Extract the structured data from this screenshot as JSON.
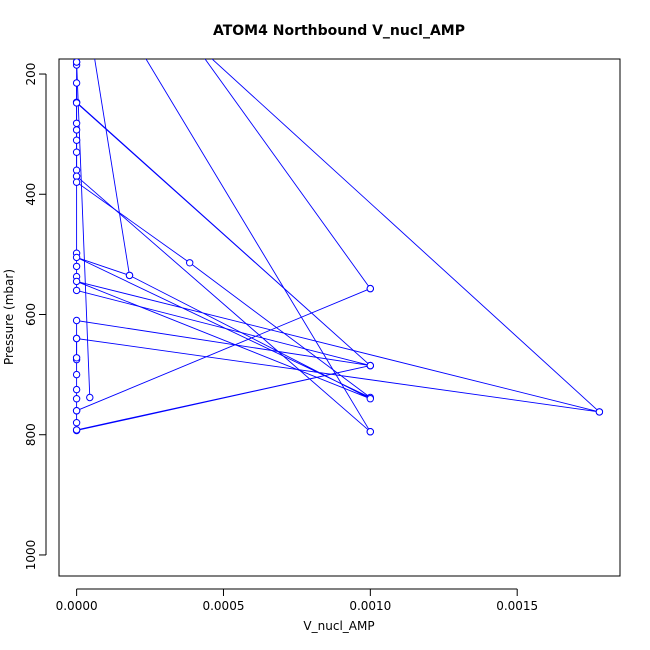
{
  "chart_data": {
    "type": "line",
    "title": "ATOM4 Northbound V_nucl_AMP",
    "xlabel": "V_nucl_AMP",
    "ylabel": "Pressure (mbar)",
    "xlim": [
      -6e-05,
      0.00185
    ],
    "ylim": [
      1035,
      175
    ],
    "y_reversed": true,
    "grid": false,
    "series_color": "#0000ff",
    "x_ticks": [
      {
        "value": 0.0,
        "label": "0.0000"
      },
      {
        "value": 0.0005,
        "label": "0.0005"
      },
      {
        "value": 0.001,
        "label": "0.0010"
      },
      {
        "value": 0.0015,
        "label": "0.0015"
      }
    ],
    "y_ticks": [
      {
        "value": 200,
        "label": "200"
      },
      {
        "value": 400,
        "label": "400"
      },
      {
        "value": 600,
        "label": "600"
      },
      {
        "value": 800,
        "label": "800"
      },
      {
        "value": 1000,
        "label": "1000"
      }
    ],
    "series": [
      {
        "points": [
          {
            "x": 0.0,
            "y": 185
          },
          {
            "x": 0.0,
            "y": 247
          },
          {
            "x": 0.001,
            "y": 685
          },
          {
            "x": 0.0,
            "y": 248
          },
          {
            "x": 0.0,
            "y": 293
          },
          {
            "x": 0.0,
            "y": 310
          },
          {
            "x": 0.0,
            "y": 330
          },
          {
            "x": 0.0,
            "y": 360
          },
          {
            "x": 0.0,
            "y": 370
          },
          {
            "x": 0.001,
            "y": 795
          },
          {
            "x": 0.0,
            "y": 370
          },
          {
            "x": 0.0,
            "y": 498
          },
          {
            "x": 0.0,
            "y": 520
          },
          {
            "x": 0.0,
            "y": 537
          },
          {
            "x": 0.0,
            "y": 560
          },
          {
            "x": 0.001,
            "y": 685
          },
          {
            "x": 0.0,
            "y": 610
          },
          {
            "x": 0.0,
            "y": 640
          },
          {
            "x": 0.0,
            "y": 675
          },
          {
            "x": 0.0,
            "y": 700
          },
          {
            "x": 0.0,
            "y": 725
          },
          {
            "x": 0.0,
            "y": 740
          },
          {
            "x": 0.0,
            "y": 760
          },
          {
            "x": 0.001,
            "y": 557
          },
          {
            "x": 0.0,
            "y": 760
          },
          {
            "x": 0.0,
            "y": 780
          },
          {
            "x": 0.0,
            "y": 793
          },
          {
            "x": 0.001,
            "y": 685
          },
          {
            "x": 0.0,
            "y": 792
          }
        ]
      },
      {
        "points": [
          {
            "x": 0.0,
            "y": 215
          },
          {
            "x": 0.0,
            "y": 282
          },
          {
            "x": 0.0,
            "y": 380
          },
          {
            "x": 0.000385,
            "y": 514
          },
          {
            "x": 0.001,
            "y": 738
          },
          {
            "x": 0.0,
            "y": 505
          },
          {
            "x": 0.00018,
            "y": 535
          },
          {
            "x": 0.001,
            "y": 740
          },
          {
            "x": 0.0,
            "y": 545
          },
          {
            "x": 0.00178,
            "y": 762
          },
          {
            "x": 0.0,
            "y": 640
          },
          {
            "x": 0.0,
            "y": 672
          }
        ]
      },
      {
        "points": [
          {
            "x": 0.0,
            "y": 180
          },
          {
            "x": 4.5e-05,
            "y": 738
          },
          {
            "x": 0.0,
            "y": 180
          }
        ]
      },
      {
        "points": [
          {
            "x": 6e-05,
            "y": 170
          },
          {
            "x": 0.00018,
            "y": 535
          }
        ]
      },
      {
        "points": [
          {
            "x": 0.00023,
            "y": 170
          },
          {
            "x": 0.001,
            "y": 795
          }
        ]
      },
      {
        "points": [
          {
            "x": 0.00043,
            "y": 170
          },
          {
            "x": 0.001,
            "y": 557
          }
        ]
      },
      {
        "points": [
          {
            "x": 0.00045,
            "y": 170
          },
          {
            "x": 0.00178,
            "y": 762
          }
        ]
      }
    ]
  }
}
